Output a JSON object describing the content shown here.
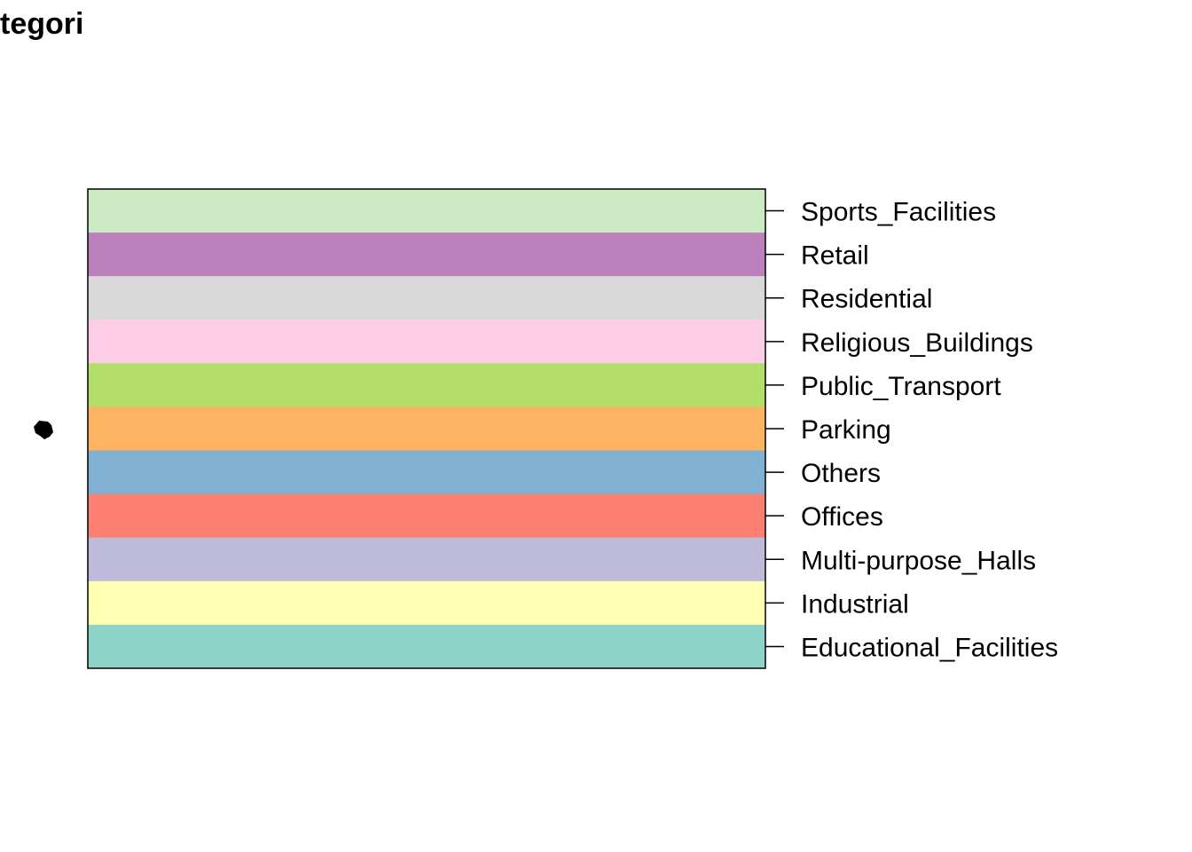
{
  "chart_data": {
    "type": "legend",
    "title": "tegori",
    "legend_keys": [
      {
        "label": "Sports_Facilities",
        "color": "#CCEBC5"
      },
      {
        "label": "Retail",
        "color": "#BC80BD"
      },
      {
        "label": "Residential",
        "color": "#D9D9D9"
      },
      {
        "label": "Religious_Buildings",
        "color": "#FCCDE5"
      },
      {
        "label": "Public_Transport",
        "color": "#B3DE69"
      },
      {
        "label": "Parking",
        "color": "#FDB462"
      },
      {
        "label": "Others",
        "color": "#80B1D3"
      },
      {
        "label": "Offices",
        "color": "#FB8072"
      },
      {
        "label": "Multi-purpose_Halls",
        "color": "#BEBADA"
      },
      {
        "label": "Industrial",
        "color": "#FFFFB3"
      },
      {
        "label": "Educational_Facilities",
        "color": "#8DD3C7"
      }
    ],
    "map_shape_color": "#000000"
  }
}
